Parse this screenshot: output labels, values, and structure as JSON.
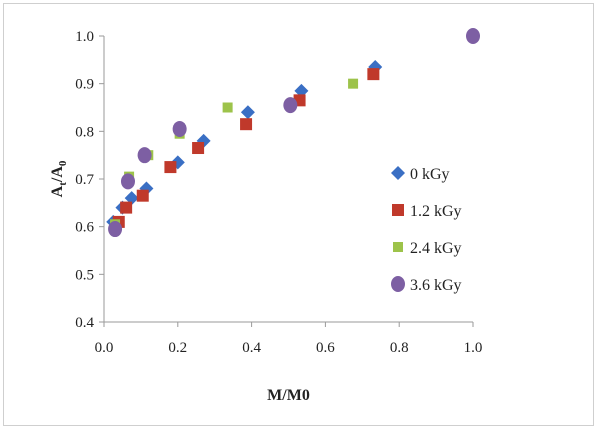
{
  "chart_data": {
    "type": "scatter",
    "xlabel": "M/M0",
    "ylabel": {
      "main": "A",
      "sub1": "t",
      "slash": "/A",
      "sub2": "0"
    },
    "xlim": [
      0.0,
      1.0
    ],
    "ylim": [
      0.4,
      1.0
    ],
    "x_ticks": [
      "0.0",
      "0.2",
      "0.4",
      "0.6",
      "0.8",
      "1.0"
    ],
    "y_ticks": [
      "0.4",
      "0.5",
      "0.6",
      "0.7",
      "0.8",
      "0.9",
      "1.0"
    ],
    "grid": false,
    "legend_position": "right",
    "series": [
      {
        "name": "0 kGy",
        "marker": "diamond",
        "color": "#3a6fc4",
        "x": [
          0.025,
          0.05,
          0.075,
          0.115,
          0.2,
          0.27,
          0.39,
          0.535,
          0.735,
          1.0
        ],
        "y": [
          0.61,
          0.64,
          0.66,
          0.68,
          0.735,
          0.78,
          0.84,
          0.885,
          0.935,
          1.0
        ]
      },
      {
        "name": "1.2 kGy",
        "marker": "square",
        "color": "#c0392b",
        "x": [
          0.04,
          0.06,
          0.105,
          0.18,
          0.255,
          0.385,
          0.53,
          0.73
        ],
        "y": [
          0.61,
          0.64,
          0.665,
          0.725,
          0.765,
          0.815,
          0.865,
          0.92
        ]
      },
      {
        "name": "2.4 kGy",
        "marker": "square-small",
        "color": "#9dc34a",
        "x": [
          0.03,
          0.068,
          0.12,
          0.205,
          0.335,
          0.675
        ],
        "y": [
          0.605,
          0.705,
          0.75,
          0.795,
          0.85,
          0.9
        ]
      },
      {
        "name": "3.6 kGy",
        "marker": "circle",
        "color": "#7d5fa3",
        "x": [
          0.03,
          0.065,
          0.11,
          0.205,
          0.505,
          1.0
        ],
        "y": [
          0.595,
          0.695,
          0.75,
          0.805,
          0.855,
          1.0
        ]
      }
    ]
  }
}
